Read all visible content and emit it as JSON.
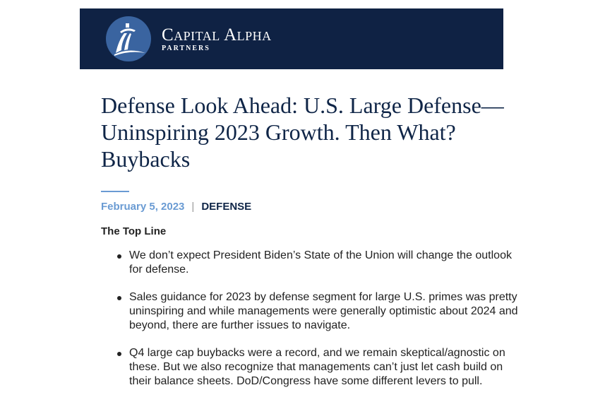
{
  "brand": {
    "name": "Capital Alpha",
    "sub": "PARTNERS"
  },
  "title": "Defense Look Ahead: U.S. Large Defense—Uninspiring 2023 Growth. Then What? Buybacks",
  "meta": {
    "date": "February 5, 2023",
    "separator": "|",
    "category": "DEFENSE"
  },
  "section_heading": "The Top Line",
  "bullets": [
    "We don’t expect President Biden’s State of the Union will change the outlook for defense.",
    "Sales guidance for 2023 by defense segment for large U.S. primes was pretty uninspiring and while managements were generally optimistic about 2024 and beyond, there are further issues to navigate.",
    "Q4 large cap buybacks were a record, and we remain skeptical/agnostic on these. But we also recognize that managements can’t just let cash build on their balance sheets. DoD/Congress have some different levers to pull."
  ]
}
